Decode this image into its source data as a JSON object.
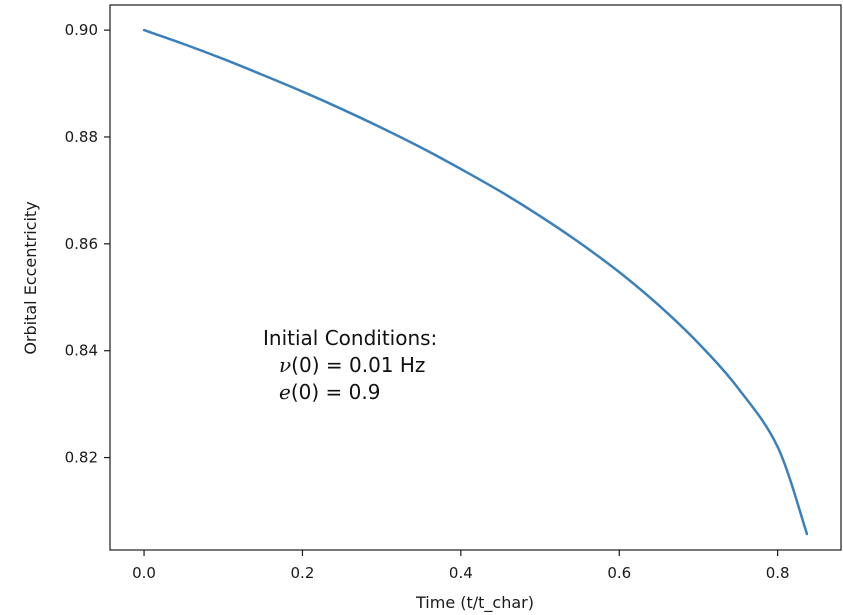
{
  "chart_data": {
    "type": "line",
    "xlabel": "Time (t/t_char)",
    "ylabel": "Orbital Eccentricity",
    "xlim": [
      -0.043,
      0.88
    ],
    "ylim": [
      0.8027,
      0.9047
    ],
    "x_ticks": [
      0.0,
      0.2,
      0.4,
      0.6,
      0.8
    ],
    "x_tick_labels": [
      "0.0",
      "0.2",
      "0.4",
      "0.6",
      "0.8"
    ],
    "y_ticks": [
      0.82,
      0.84,
      0.86,
      0.88,
      0.9
    ],
    "y_tick_labels": [
      "0.82",
      "0.84",
      "0.86",
      "0.88",
      "0.90"
    ],
    "grid": false,
    "series": [
      {
        "color": "#3a80ba",
        "x": [
          0.0,
          0.05,
          0.1,
          0.15,
          0.2,
          0.25,
          0.3,
          0.35,
          0.4,
          0.45,
          0.5,
          0.55,
          0.6,
          0.65,
          0.7,
          0.75,
          0.8,
          0.837
        ],
        "y": [
          0.9,
          0.8974,
          0.8946,
          0.8916,
          0.8885,
          0.8852,
          0.8817,
          0.878,
          0.874,
          0.8698,
          0.8652,
          0.8602,
          0.8547,
          0.8485,
          0.8414,
          0.833,
          0.822,
          0.8057
        ]
      }
    ],
    "annotation": {
      "line1": "Initial Conditions:",
      "line2_symbol": "ν",
      "line2_arg": "(0) = ",
      "line2_value": "0.01 Hz",
      "line3_symbol": "e",
      "line3_arg": "(0) = ",
      "line3_value": "0.9"
    }
  }
}
